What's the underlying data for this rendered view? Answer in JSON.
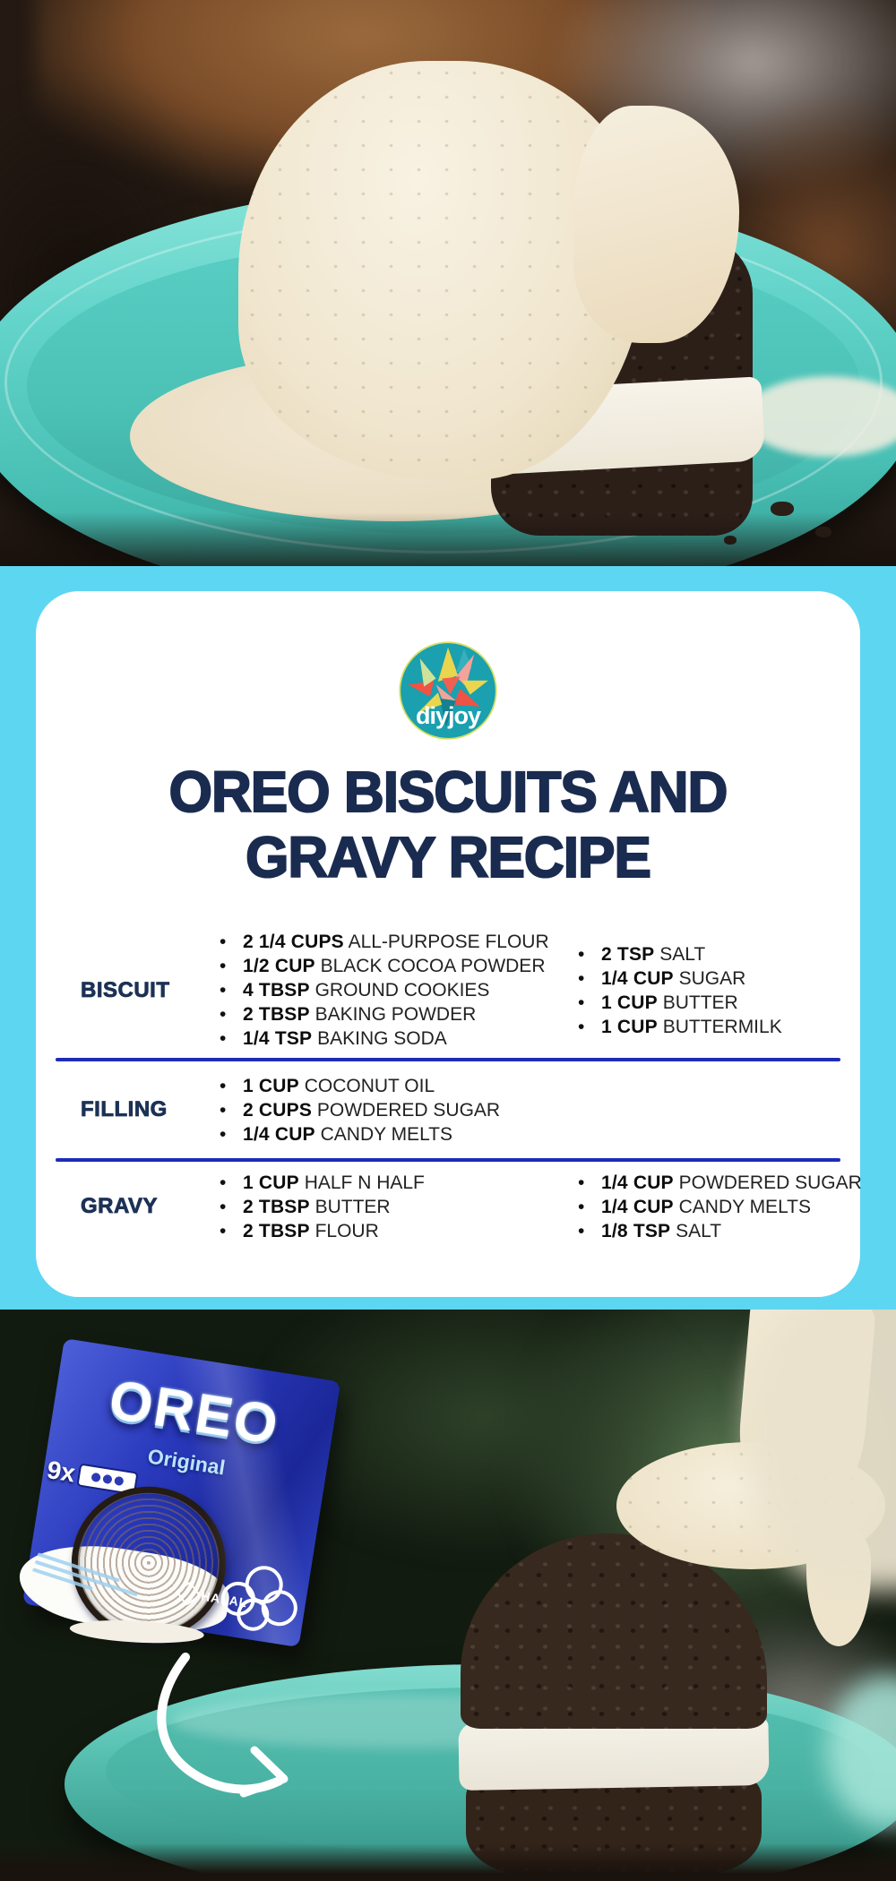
{
  "logo": {
    "text": "diyjoy",
    "circle_color": "#1aa0af",
    "ring_color": "#d6de62"
  },
  "title": {
    "line1": "OREO BISCUITS AND",
    "line2": "GRAVY RECIPE",
    "color": "#1a2b50"
  },
  "recipe": {
    "bullet_glyph": "•",
    "divider_color": "#1e2bb8",
    "label_color": "#1c3156",
    "sections": [
      {
        "label": "BISCUIT",
        "col1": [
          {
            "qty": "2 1/4 CUPS",
            "name": "ALL-PURPOSE FLOUR"
          },
          {
            "qty": "1/2 CUP",
            "name": "BLACK COCOA POWDER"
          },
          {
            "qty": "4 TBSP",
            "name": "GROUND COOKIES"
          },
          {
            "qty": "2 TBSP",
            "name": "BAKING POWDER"
          },
          {
            "qty": "1/4 TSP",
            "name": "BAKING SODA"
          }
        ],
        "col2": [
          {
            "qty": "2 TSP",
            "name": "SALT"
          },
          {
            "qty": "1/4 CUP",
            "name": "SUGAR"
          },
          {
            "qty": "1 CUP",
            "name": "BUTTER"
          },
          {
            "qty": "1 CUP",
            "name": "BUTTERMILK"
          }
        ]
      },
      {
        "label": "FILLING",
        "col1": [
          {
            "qty": "1 CUP",
            "name": "COCONUT OIL"
          },
          {
            "qty": "2 CUPS",
            "name": "POWDERED SUGAR"
          },
          {
            "qty": "1/4 CUP",
            "name": "CANDY MELTS"
          }
        ],
        "col2": []
      },
      {
        "label": "GRAVY",
        "col1": [
          {
            "qty": "1 CUP",
            "name": "HALF N HALF"
          },
          {
            "qty": "2 TBSP",
            "name": "BUTTER"
          },
          {
            "qty": "2 TBSP",
            "name": "FLOUR"
          }
        ],
        "col2": [
          {
            "qty": "1/4 CUP",
            "name": "POWDERED SUGAR"
          },
          {
            "qty": "1/4 CUP",
            "name": "CANDY MELTS"
          },
          {
            "qty": "1/8 TSP",
            "name": "SALT"
          }
        ]
      }
    ]
  },
  "oreo_package": {
    "brand": "OREO",
    "variant": "Original",
    "count_badge": "9x",
    "cert": "HALAL",
    "package_color": "#2b3bb5"
  },
  "colors": {
    "band_background": "#5dd6f2",
    "card_background": "#ffffff",
    "plate_teal": "#5ecfc5",
    "gravy_cream": "#f1e8d4",
    "biscuit_dark": "#33241a"
  }
}
